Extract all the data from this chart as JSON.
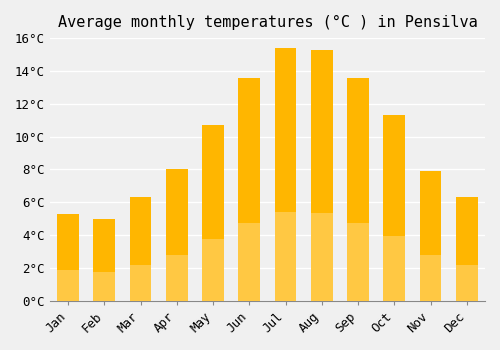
{
  "title": "Average monthly temperatures (°C ) in Pensilva",
  "months": [
    "Jan",
    "Feb",
    "Mar",
    "Apr",
    "May",
    "Jun",
    "Jul",
    "Aug",
    "Sep",
    "Oct",
    "Nov",
    "Dec"
  ],
  "values": [
    5.3,
    5.0,
    6.3,
    8.0,
    10.7,
    13.6,
    15.4,
    15.3,
    13.6,
    11.3,
    7.9,
    6.3
  ],
  "bar_color_top": "#FFB600",
  "bar_color_bottom": "#FFD060",
  "ylim": [
    0,
    16
  ],
  "yticks": [
    0,
    2,
    4,
    6,
    8,
    10,
    12,
    14,
    16
  ],
  "ytick_labels": [
    "0°C",
    "2°C",
    "4°C",
    "6°C",
    "8°C",
    "10°C",
    "12°C",
    "14°C",
    "16°C"
  ],
  "background_color": "#f0f0f0",
  "grid_color": "#ffffff",
  "title_fontsize": 11,
  "tick_fontsize": 9,
  "font_family": "monospace"
}
